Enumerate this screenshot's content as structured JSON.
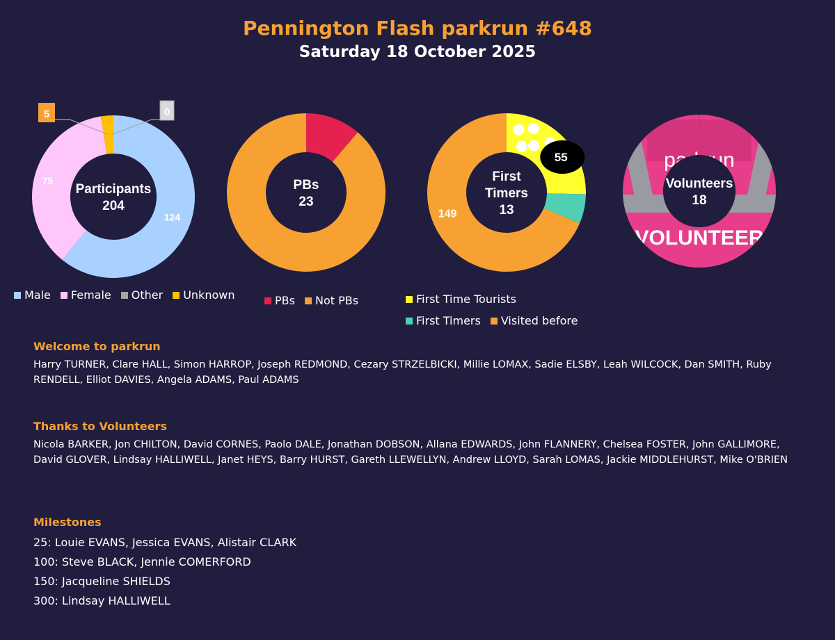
{
  "header": {
    "title": "Pennington Flash parkrun #648",
    "subtitle": "Saturday 18 October 2025"
  },
  "chart_data": [
    {
      "type": "pie",
      "id": "participants",
      "center_label": "Participants",
      "center_value": "204",
      "categories": [
        "Male",
        "Female",
        "Other",
        "Unknown"
      ],
      "values": [
        124,
        75,
        0,
        5
      ],
      "colors": [
        "#a9d1ff",
        "#ffc6fb",
        "#a6a6a6",
        "#ffc000"
      ],
      "data_labels": [
        "124",
        "75",
        "0",
        "5"
      ],
      "legend": "bottom"
    },
    {
      "type": "pie",
      "id": "pbs",
      "center_label": "PBs",
      "center_value": "23",
      "categories": [
        "PBs",
        "Not PBs"
      ],
      "values": [
        23,
        181
      ],
      "colors": [
        "#e5214f",
        "#f7a133"
      ],
      "legend": "bottom"
    },
    {
      "type": "pie",
      "id": "first-timers",
      "center_label": "First Timers",
      "center_value": "13",
      "categories": [
        "First Time Tourists",
        "First Timers",
        "Visited before"
      ],
      "values": [
        55,
        13,
        149
      ],
      "colors": [
        "#ffff2e",
        "#4fd0b4",
        "#f7a133"
      ],
      "data_labels": [
        "55",
        "",
        "149"
      ],
      "legend": "bottom"
    },
    {
      "type": "pie",
      "id": "volunteers",
      "center_label": "Volunteers",
      "center_value": "18",
      "picture_text": "VOLUNTEER",
      "colors": [
        "#e83d8a"
      ]
    }
  ],
  "sections": {
    "welcome": {
      "title": "Welcome to parkrun",
      "body": "Harry TURNER, Clare HALL, Simon HARROP, Joseph REDMOND, Cezary STRZELBICKI, Millie LOMAX, Sadie ELSBY, Leah WILCOCK, Dan SMITH, Ruby RENDELL, Elliot DAVIES, Angela ADAMS, Paul ADAMS"
    },
    "volunteers": {
      "title": "Thanks to Volunteers",
      "body": "Nicola BARKER, Jon CHILTON, David CORNES, Paolo DALE, Jonathan DOBSON, Allana EDWARDS, John FLANNERY, Chelsea FOSTER, John GALLIMORE, David GLOVER, Lindsay HALLIWELL, Janet HEYS, Barry HURST, Gareth LLEWELLYN, Andrew LLOYD, Sarah LOMAS, Jackie MIDDLEHURST, Mike O'BRIEN"
    },
    "milestones": {
      "title": "Milestones",
      "lines": [
        "25: Louie EVANS, Jessica EVANS, Alistair CLARK",
        "100: Steve BLACK, Jennie COMERFORD",
        "150: Jacqueline SHIELDS",
        "300: Lindsay HALLIWELL"
      ]
    }
  }
}
